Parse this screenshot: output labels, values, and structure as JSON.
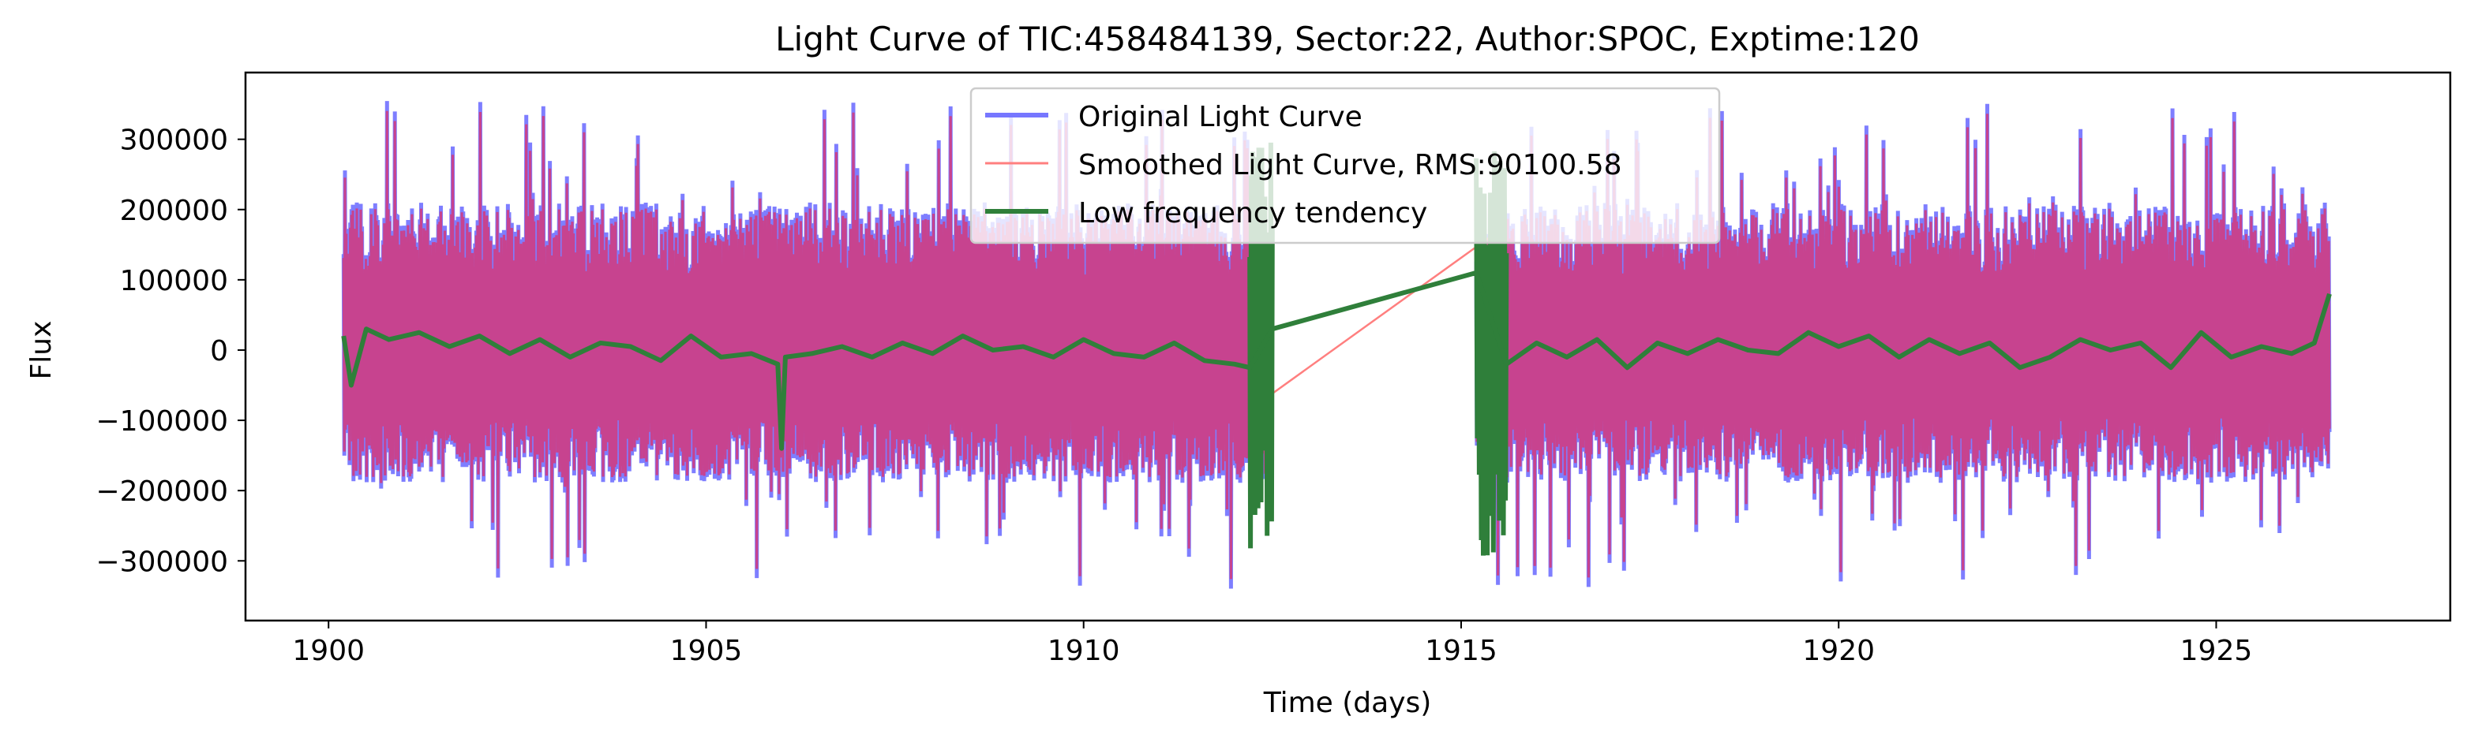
{
  "chart_data": {
    "type": "line",
    "title": "Light Curve of TIC:458484139, Sector:22, Author:SPOC, Exptime:120",
    "xlabel": "Time (days)",
    "ylabel": "Flux",
    "xlim": [
      1898.9,
      1928.1
    ],
    "ylim": [
      -385000,
      395000
    ],
    "xticks": [
      1900,
      1905,
      1910,
      1915,
      1920,
      1925
    ],
    "xtick_labels": [
      "1900",
      "1905",
      "1910",
      "1915",
      "1920",
      "1925"
    ],
    "yticks": [
      -300000,
      -200000,
      -100000,
      0,
      100000,
      200000,
      300000
    ],
    "ytick_labels": [
      "−300000",
      "−200000",
      "−100000",
      "0",
      "100000",
      "200000",
      "300000"
    ],
    "grid": false,
    "legend_position": "top-center",
    "segments": [
      [
        1900.2,
        1912.5
      ],
      [
        1915.2,
        1926.5
      ]
    ],
    "noise_envelope": {
      "upper_typical": 200000,
      "lower_typical": -180000,
      "max": 355000,
      "min": -345000
    },
    "series": [
      {
        "name": "Original Light Curve",
        "color": "#7777ff",
        "linewidth": "thick",
        "style": "dense oscillation, same envelope as noise_envelope"
      },
      {
        "name": "Smoothed Light Curve, RMS:90100.58",
        "color": "#ff7f7f",
        "linewidth": "thin",
        "x": [
          1912.2,
          1915.5
        ],
        "y": [
          -85000,
          170000
        ]
      },
      {
        "name": "Low frequency tendency",
        "color": "#2f7f3a",
        "linewidth": "thick",
        "x": [
          1900.2,
          1900.3,
          1900.5,
          1900.8,
          1901.2,
          1901.6,
          1902.0,
          1902.4,
          1902.8,
          1903.2,
          1903.6,
          1904.0,
          1904.4,
          1904.8,
          1905.2,
          1905.6,
          1905.95,
          1906.0,
          1906.05,
          1906.4,
          1906.8,
          1907.2,
          1907.6,
          1908.0,
          1908.4,
          1908.8,
          1909.2,
          1909.6,
          1910.0,
          1910.4,
          1910.8,
          1911.2,
          1911.6,
          1912.0,
          1912.2,
          1912.5,
          1915.2,
          1915.6,
          1916.0,
          1916.4,
          1916.8,
          1917.2,
          1917.6,
          1918.0,
          1918.4,
          1918.8,
          1919.2,
          1919.6,
          1920.0,
          1920.4,
          1920.8,
          1921.2,
          1921.6,
          1922.0,
          1922.4,
          1922.8,
          1923.2,
          1923.6,
          1924.0,
          1924.4,
          1924.8,
          1925.2,
          1925.6,
          1926.0,
          1926.3,
          1926.5
        ],
        "y": [
          20000,
          -50000,
          30000,
          15000,
          25000,
          5000,
          20000,
          -5000,
          15000,
          -10000,
          10000,
          5000,
          -15000,
          20000,
          -10000,
          -5000,
          -20000,
          -140000,
          -10000,
          -5000,
          5000,
          -10000,
          10000,
          -5000,
          20000,
          0,
          5000,
          -10000,
          15000,
          -5000,
          -10000,
          10000,
          -15000,
          -20000,
          -25000,
          30000,
          110000,
          -20000,
          10000,
          -10000,
          15000,
          -25000,
          10000,
          -5000,
          15000,
          0,
          -5000,
          25000,
          5000,
          20000,
          -10000,
          15000,
          -5000,
          10000,
          -25000,
          -10000,
          15000,
          0,
          10000,
          -25000,
          25000,
          -10000,
          5000,
          -5000,
          10000,
          80000
        ]
      }
    ]
  }
}
